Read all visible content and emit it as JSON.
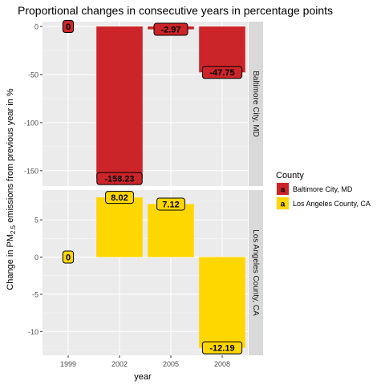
{
  "chart_data": {
    "type": "bar",
    "title": "Proportional changes in consecutive years in percentage points",
    "xlabel": "year",
    "ylabel_prefix": "Change in PM",
    "ylabel_subscript": "2.5",
    "ylabel_suffix": " emissions from previous year in %",
    "categories": [
      "1999",
      "2002",
      "2005",
      "2008"
    ],
    "legend": {
      "title": "County",
      "key_letter": "a",
      "placement": "right"
    },
    "grid": true,
    "facets": [
      {
        "name": "Baltimore City, MD",
        "color": "#CC2529",
        "values": [
          0,
          -158.23,
          -2.97,
          -47.75
        ],
        "labels": [
          "0",
          "-158.23",
          "-2.97",
          "-47.75"
        ],
        "ylim": [
          -166,
          5
        ],
        "yticks": [
          0,
          -50,
          -100,
          -150
        ],
        "ytick_labels": [
          "0",
          "-50",
          "-100",
          "-150"
        ]
      },
      {
        "name": "Los Angeles County, CA",
        "color": "#FFD700",
        "values": [
          0,
          8.02,
          7.12,
          -12.19
        ],
        "labels": [
          "0",
          "8.02",
          "7.12",
          "-12.19"
        ],
        "ylim": [
          -13.2,
          9.0
        ],
        "yticks": [
          5,
          0,
          -5,
          -10
        ],
        "ytick_labels": [
          "5",
          "0",
          "-5",
          "-10"
        ]
      }
    ]
  }
}
